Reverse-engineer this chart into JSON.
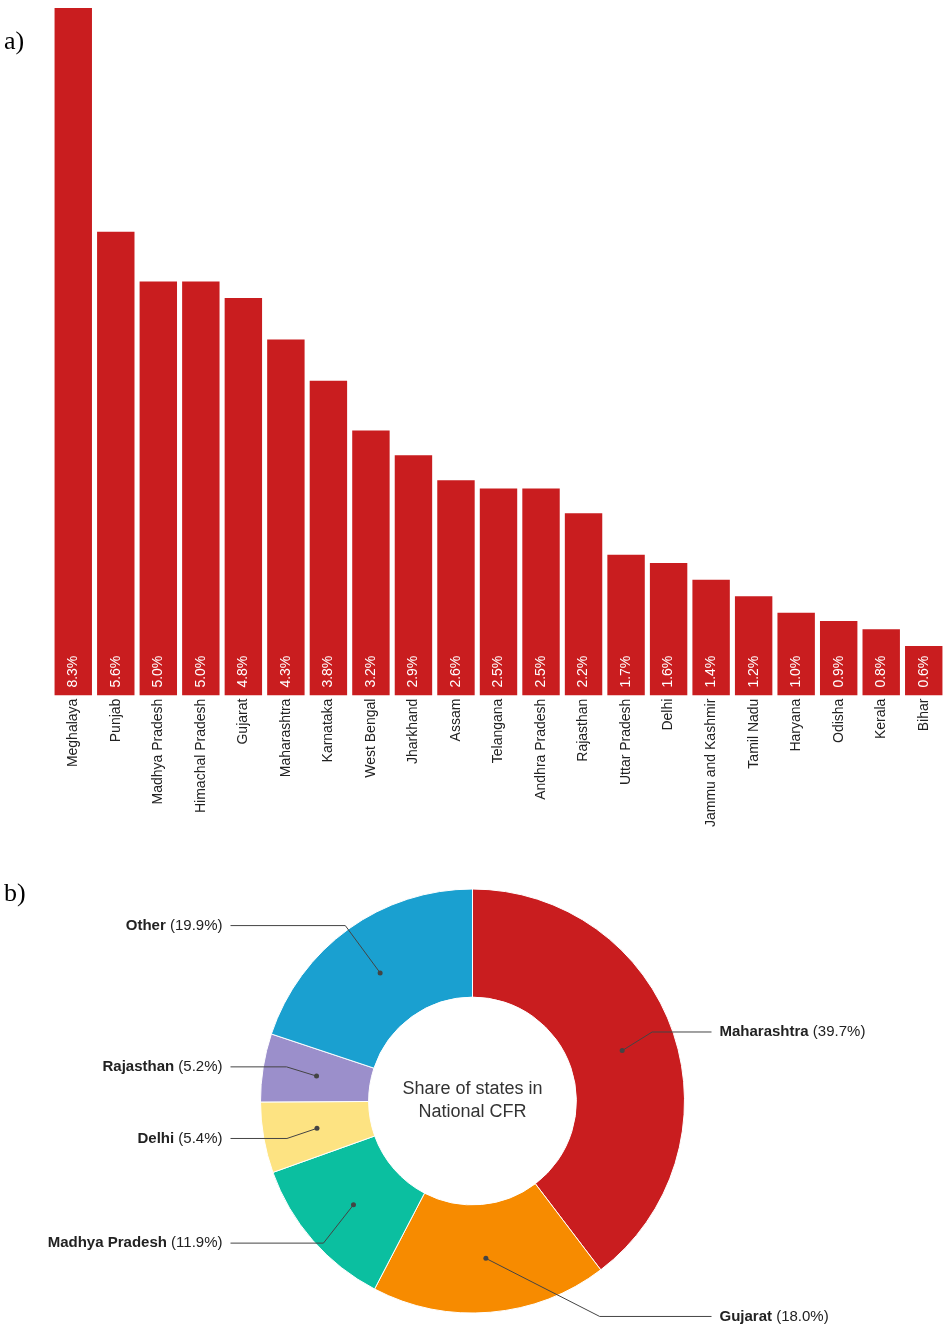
{
  "chart_data": [
    {
      "type": "bar",
      "annotations": [
        "a)"
      ],
      "categories": [
        "Meghalaya",
        "Punjab",
        "Madhya Pradesh",
        "Himachal Pradesh",
        "Gujarat",
        "Maharashtra",
        "Karnataka",
        "West Bengal",
        "Jharkhand",
        "Assam",
        "Telangana",
        "Andhra Pradesh",
        "Rajasthan",
        "Uttar Pradesh",
        "Delhi",
        "Jammu and Kashmir",
        "Tamil Nadu",
        "Haryana",
        "Odisha",
        "Kerala",
        "Bihar"
      ],
      "values": [
        8.3,
        5.6,
        5.0,
        5.0,
        4.8,
        4.3,
        3.8,
        3.2,
        2.9,
        2.6,
        2.5,
        2.5,
        2.2,
        1.7,
        1.6,
        1.4,
        1.2,
        1.0,
        0.9,
        0.8,
        0.6
      ],
      "value_labels": [
        "8.3%",
        "5.6%",
        "5.0%",
        "5.0%",
        "4.8%",
        "4.3%",
        "3.8%",
        "3.2%",
        "2.9%",
        "2.6%",
        "2.5%",
        "2.5%",
        "2.2%",
        "1.7%",
        "1.6%",
        "1.4%",
        "1.2%",
        "1.0%",
        "0.9%",
        "0.8%",
        "0.6%"
      ],
      "color": "#c91d1f",
      "ylim": [
        0,
        8.3
      ],
      "grid": false,
      "legend": false
    },
    {
      "type": "donut",
      "title": "Share of states in National CFR",
      "annotations": [
        "b)"
      ],
      "categories": [
        "Maharashtra",
        "Gujarat",
        "Madhya Pradesh",
        "Delhi",
        "Rajasthan",
        "Other"
      ],
      "values": [
        39.7,
        18.0,
        11.9,
        5.4,
        5.2,
        19.9
      ],
      "value_labels": [
        "(39.7%)",
        "(18.0%)",
        "(11.9%)",
        "(5.4%)",
        "(5.2%)",
        "(19.9%)"
      ],
      "colors": [
        "#c91d1f",
        "#f78b00",
        "#0bbfa0",
        "#fde382",
        "#9b8fcb",
        "#1aa0d0"
      ],
      "legend": false
    }
  ]
}
